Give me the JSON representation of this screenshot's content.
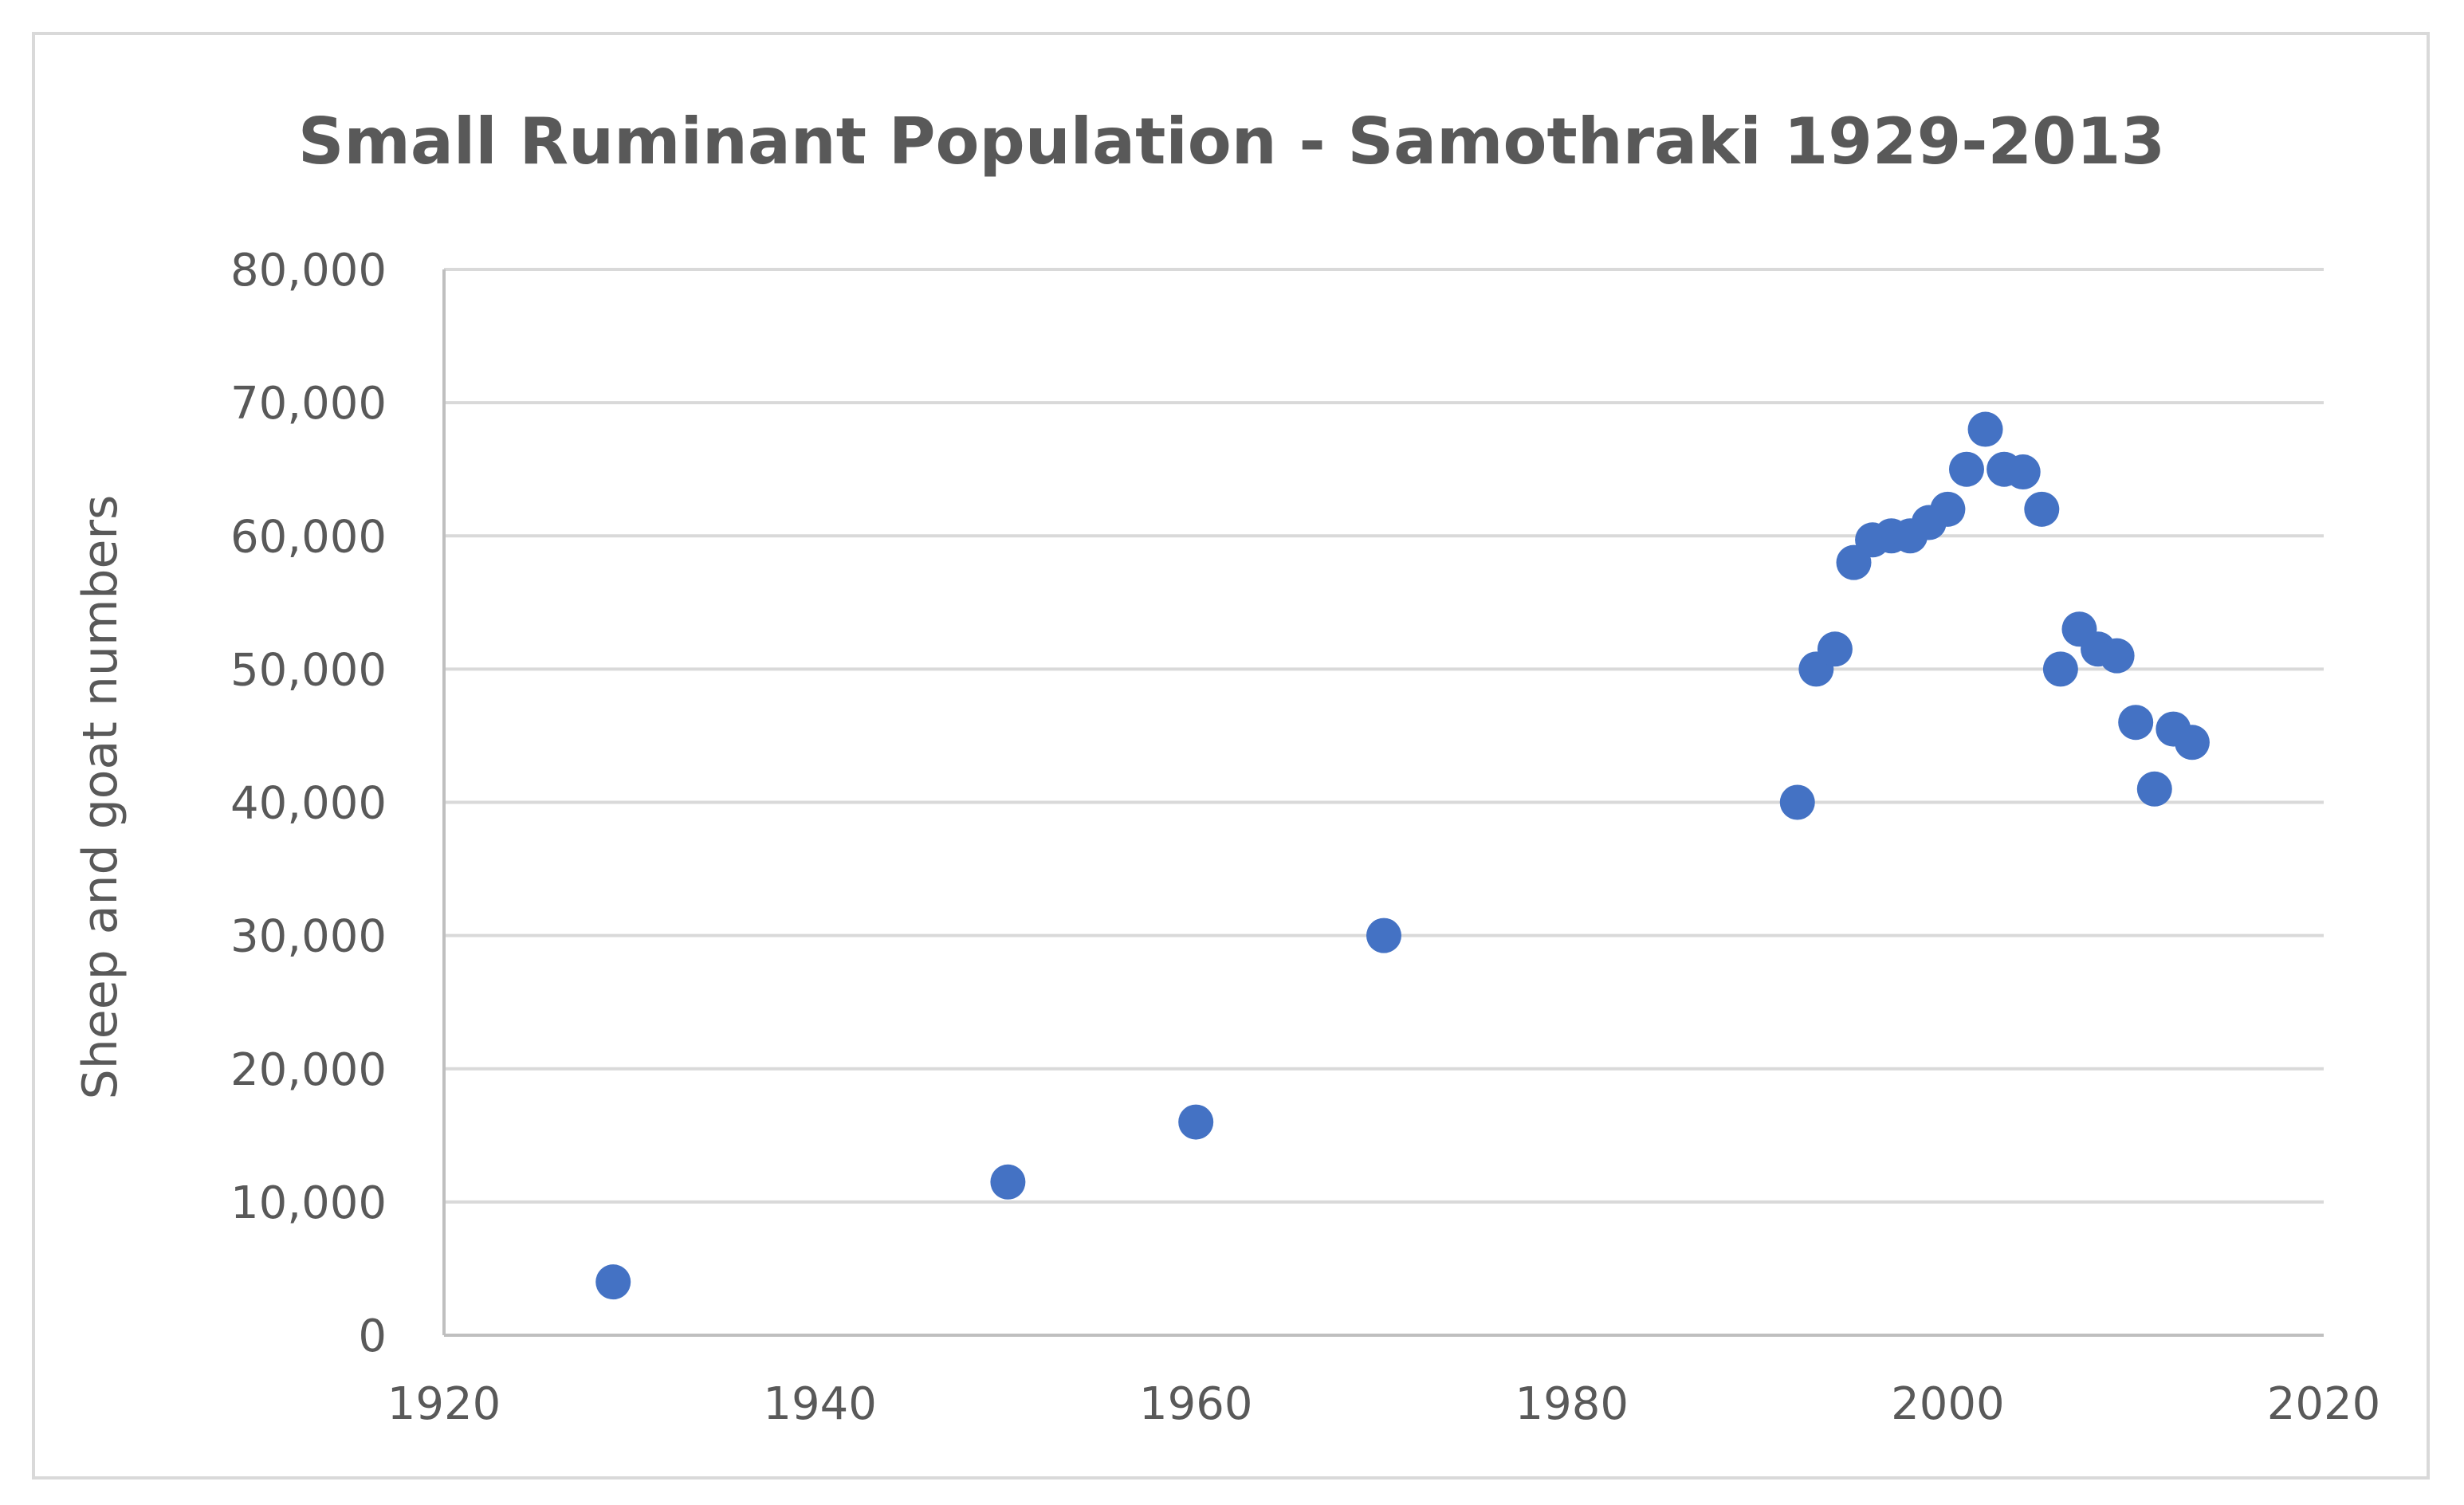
{
  "chart_data": {
    "type": "scatter",
    "title": "Small Ruminant Population - Samothraki 1929-2013",
    "xlabel": "",
    "ylabel": "Sheep and goat numbers",
    "xlim": [
      1920,
      2020
    ],
    "ylim": [
      0,
      80000
    ],
    "x_ticks": [
      1920,
      1940,
      1960,
      1980,
      2000,
      2020
    ],
    "y_ticks": [
      0,
      10000,
      20000,
      30000,
      40000,
      50000,
      60000,
      70000,
      80000
    ],
    "x_tick_labels": [
      "1920",
      "1940",
      "1960",
      "1980",
      "2000",
      "2020"
    ],
    "y_tick_labels": [
      "0",
      "10,000",
      "20,000",
      "30,000",
      "40,000",
      "50,000",
      "60,000",
      "70,000",
      "80,000"
    ],
    "grid": "horizontal",
    "legend": "none",
    "series": [
      {
        "color": "#4472c4",
        "points": [
          [
            1929,
            4000
          ],
          [
            1950,
            11500
          ],
          [
            1960,
            16000
          ],
          [
            1970,
            30000
          ],
          [
            1992,
            40000
          ],
          [
            1993,
            50000
          ],
          [
            1994,
            51500
          ],
          [
            1995,
            58000
          ],
          [
            1996,
            59700
          ],
          [
            1997,
            60000
          ],
          [
            1998,
            60000
          ],
          [
            1999,
            61000
          ],
          [
            2000,
            62000
          ],
          [
            2001,
            65000
          ],
          [
            2002,
            68000
          ],
          [
            2003,
            65000
          ],
          [
            2004,
            64800
          ],
          [
            2005,
            62000
          ],
          [
            2006,
            50000
          ],
          [
            2007,
            53000
          ],
          [
            2008,
            51500
          ],
          [
            2009,
            51000
          ],
          [
            2010,
            46000
          ],
          [
            2011,
            41000
          ],
          [
            2012,
            45500
          ],
          [
            2013,
            44500
          ]
        ]
      }
    ],
    "colors": {
      "gridline": "#d9d9d9",
      "axis": "#bfbfbf",
      "text": "#595959",
      "frame": "#d9d9d9"
    }
  }
}
